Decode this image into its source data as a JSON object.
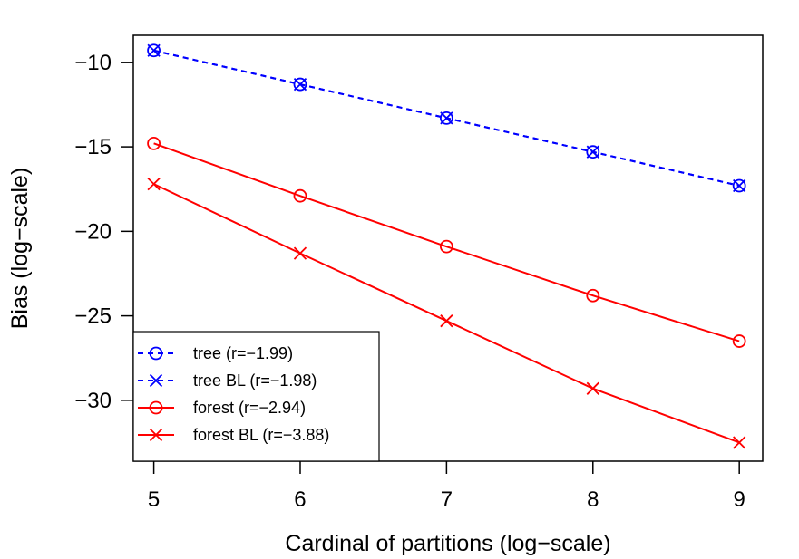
{
  "chart_data": {
    "type": "line",
    "xlabel": "Cardinal of partitions (log−scale)",
    "ylabel": "Bias (log−scale)",
    "x": [
      5,
      6,
      7,
      8,
      9
    ],
    "xlim": [
      4.86,
      9.16
    ],
    "ylim": [
      -33.6,
      -8.4
    ],
    "x_ticks": [
      "5",
      "6",
      "7",
      "8",
      "9"
    ],
    "y_ticks": [
      "−10",
      "−15",
      "−20",
      "−25",
      "−30"
    ],
    "x_tick_values": [
      5,
      6,
      7,
      8,
      9
    ],
    "y_tick_values": [
      -10,
      -15,
      -20,
      -25,
      -30
    ],
    "grid": false,
    "legend_position": "bottom-left",
    "series": [
      {
        "name": "tree (r=−1.99)",
        "values": [
          -9.3,
          -11.3,
          -13.3,
          -15.3,
          -17.3
        ],
        "color": "#0000ff",
        "line": "dashed",
        "marker": "circle"
      },
      {
        "name": "tree BL (r=−1.98)",
        "values": [
          -9.3,
          -11.3,
          -13.3,
          -15.3,
          -17.3
        ],
        "color": "#0000ff",
        "line": "dashed",
        "marker": "cross"
      },
      {
        "name": "forest (r=−2.94)",
        "values": [
          -14.8,
          -17.9,
          -20.9,
          -23.8,
          -26.5
        ],
        "color": "#ff0000",
        "line": "solid",
        "marker": "circle"
      },
      {
        "name": "forest BL (r=−3.88)",
        "values": [
          -17.2,
          -21.3,
          -25.3,
          -29.3,
          -32.5
        ],
        "color": "#ff0000",
        "line": "solid",
        "marker": "cross"
      }
    ]
  }
}
